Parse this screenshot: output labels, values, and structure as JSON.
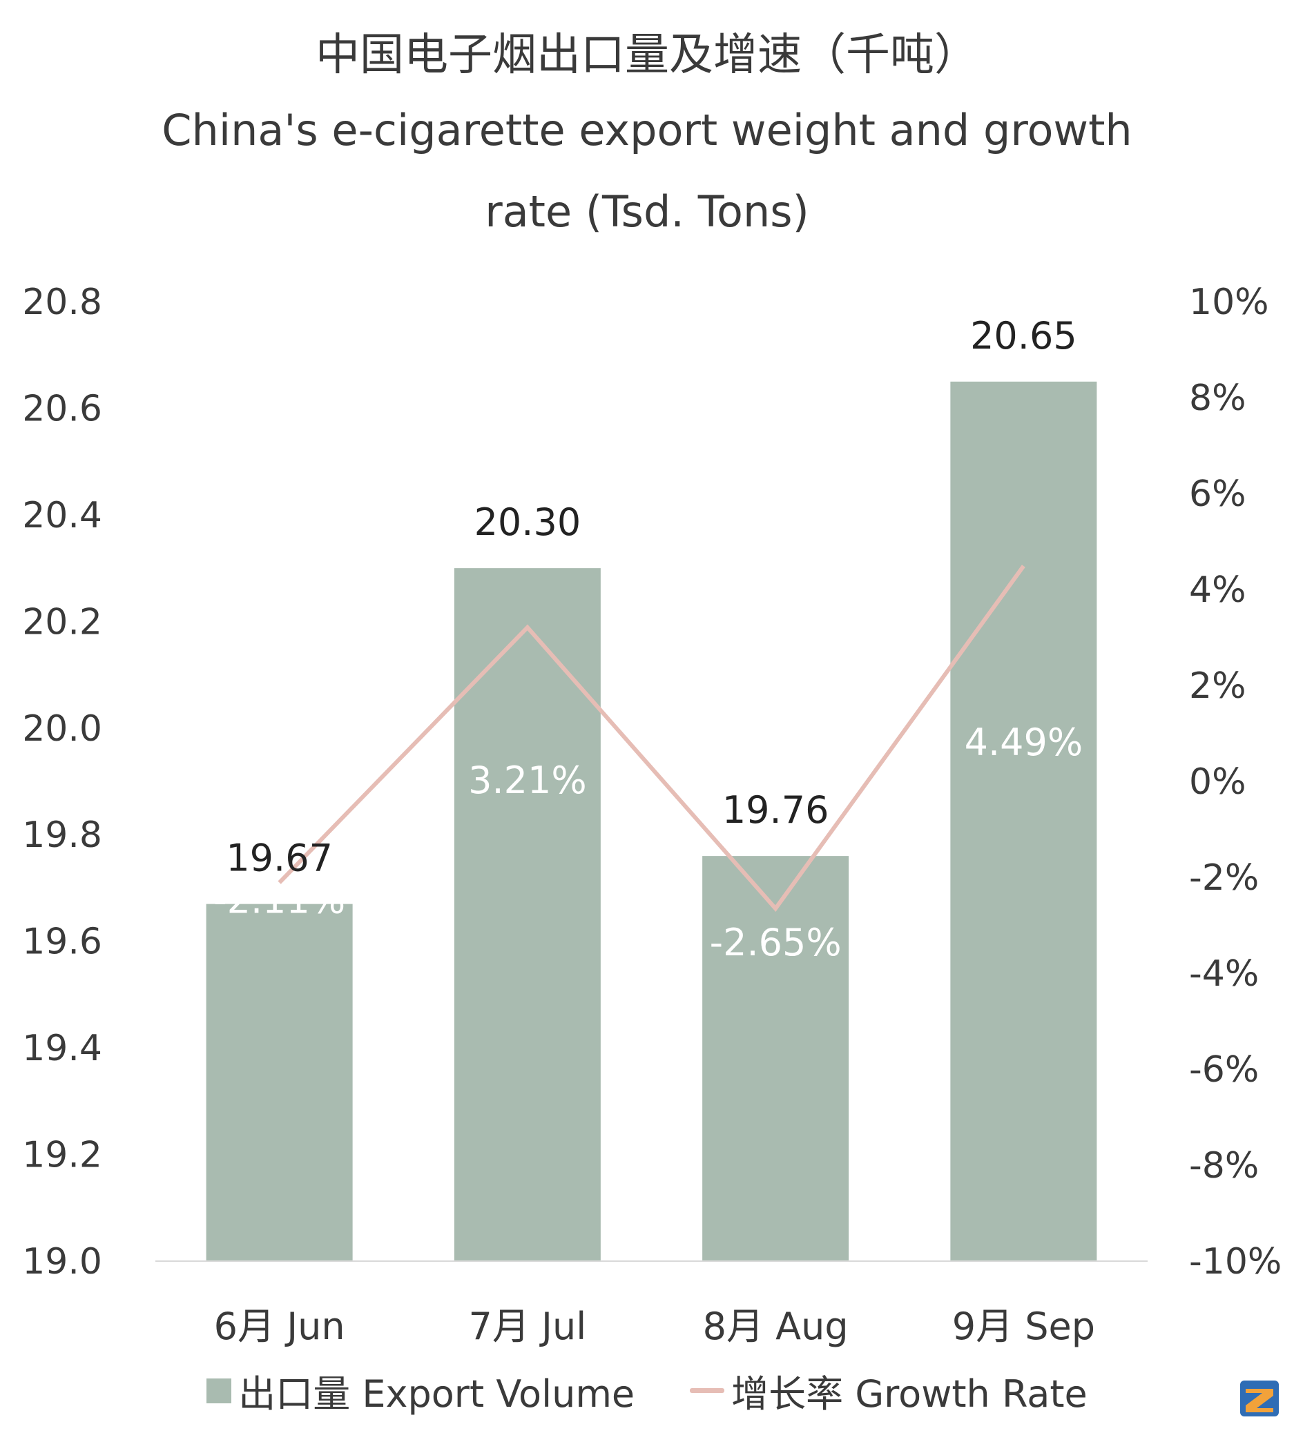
{
  "chart_data": {
    "type": "bar+line",
    "title": "中国电子烟出口量及增速（千吨）",
    "subtitle": "China's e-cigarette export weight and growth rate (Tsd. Tons)",
    "categories": [
      "6月 Jun",
      "7月 Jul",
      "8月 Aug",
      "9月 Sep"
    ],
    "series": [
      {
        "name": "出口量 Export Volume",
        "type": "bar",
        "axis": "left",
        "values": [
          19.67,
          20.3,
          19.76,
          20.65
        ],
        "labels": [
          "19.67",
          "20.30",
          "19.76",
          "20.65"
        ]
      },
      {
        "name": "增长率 Growth Rate",
        "type": "line",
        "axis": "right",
        "values": [
          -2.11,
          3.21,
          -2.65,
          4.49
        ],
        "labels": [
          "-2.11%",
          "3.21%",
          "-2.65%",
          "4.49%"
        ]
      }
    ],
    "y_left": {
      "min": 19.0,
      "max": 20.8,
      "step": 0.2,
      "ticks": [
        "19.0",
        "19.2",
        "19.4",
        "19.6",
        "19.8",
        "20.0",
        "20.2",
        "20.4",
        "20.6",
        "20.8"
      ]
    },
    "y_right": {
      "min": -10,
      "max": 10,
      "step": 2,
      "unit": "%",
      "ticks": [
        "-10%",
        "-8%",
        "-6%",
        "-4%",
        "-2%",
        "0%",
        "2%",
        "4%",
        "6%",
        "8%",
        "10%"
      ]
    },
    "legend_position": "bottom",
    "grid": false
  },
  "colors": {
    "bar": "#a9bbb0",
    "line": "#e6bdb5",
    "axis": "#d9d9d9"
  },
  "logo": {
    "icon": "company-logo-icon"
  }
}
